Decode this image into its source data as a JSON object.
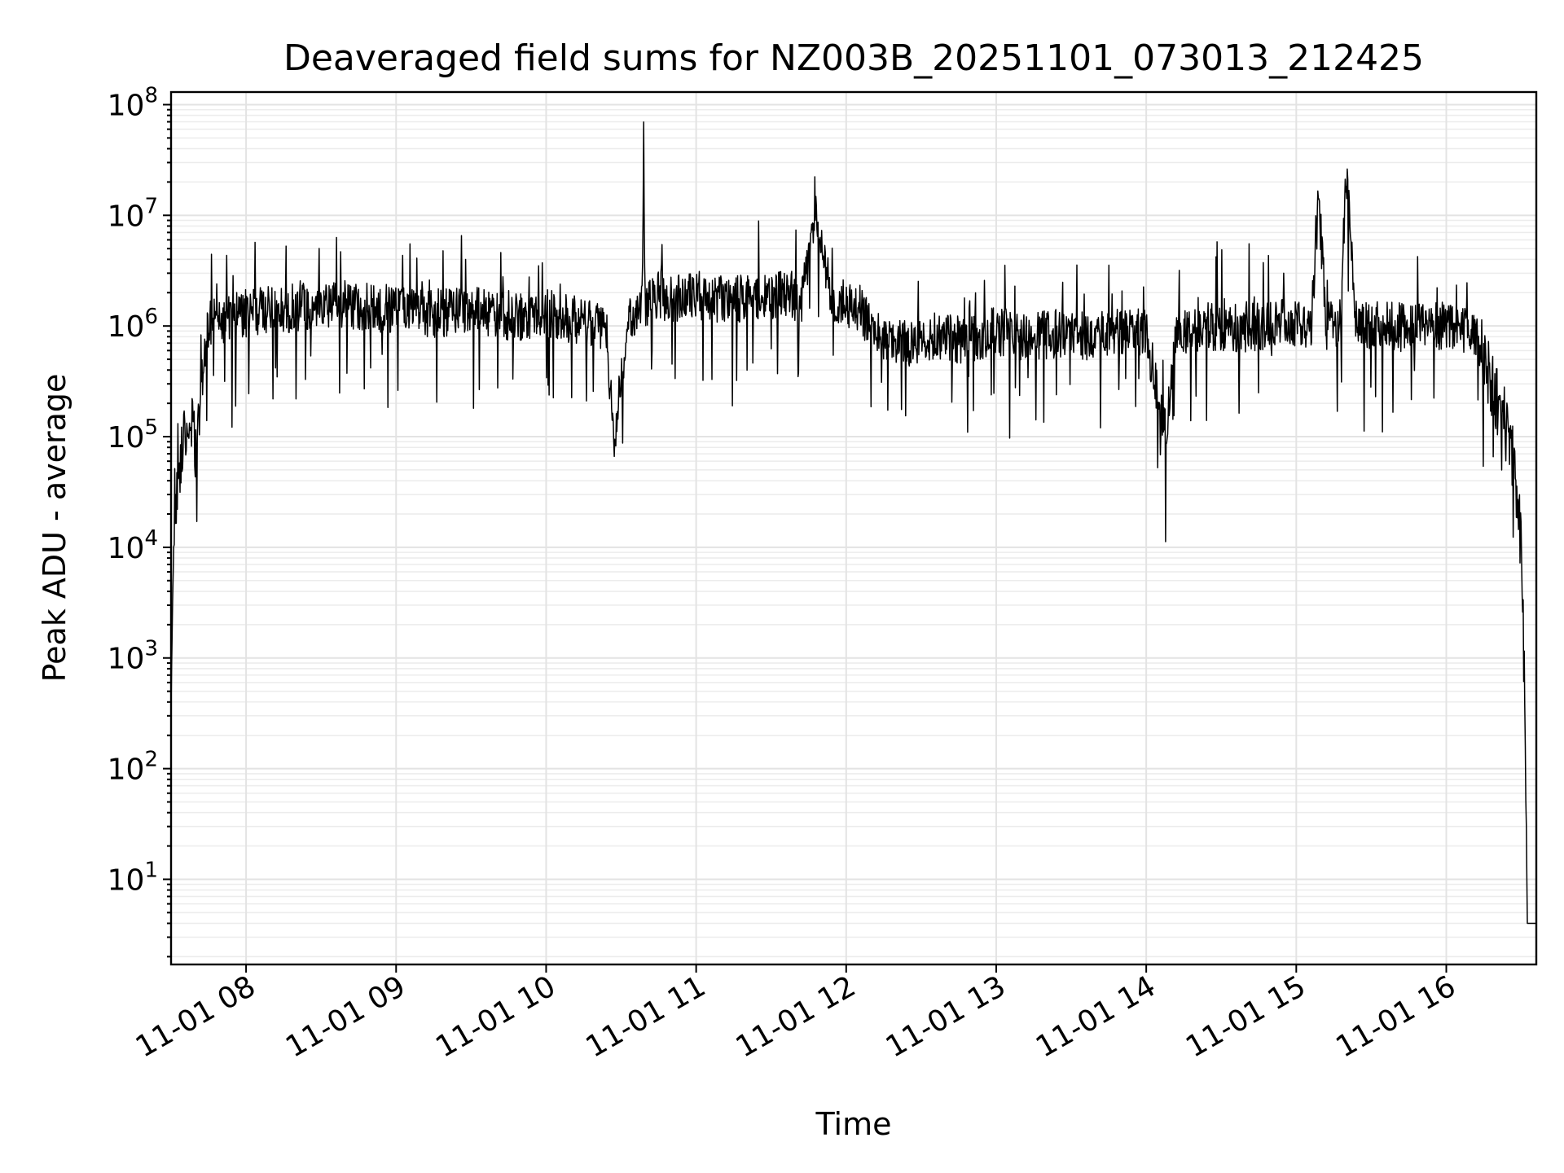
{
  "chart_data": {
    "type": "line",
    "title": "Deaveraged field sums for NZ003B_20251101_073013_212425",
    "xlabel": "Time",
    "ylabel": "Peak ADU - average",
    "yscale": "log",
    "ylim": [
      1.7,
      130000000
    ],
    "xlim_hours": [
      7.5,
      16.6
    ],
    "x_ticks": [
      {
        "label": "11-01 08",
        "hour": 8
      },
      {
        "label": "11-01 09",
        "hour": 9
      },
      {
        "label": "11-01 10",
        "hour": 10
      },
      {
        "label": "11-01 11",
        "hour": 11
      },
      {
        "label": "11-01 12",
        "hour": 12
      },
      {
        "label": "11-01 13",
        "hour": 13
      },
      {
        "label": "11-01 14",
        "hour": 14
      },
      {
        "label": "11-01 15",
        "hour": 15
      },
      {
        "label": "11-01 16",
        "hour": 16
      }
    ],
    "y_ticks": [
      {
        "base": "10",
        "exp": "1",
        "value": 10
      },
      {
        "base": "10",
        "exp": "2",
        "value": 100
      },
      {
        "base": "10",
        "exp": "3",
        "value": 1000
      },
      {
        "base": "10",
        "exp": "4",
        "value": 10000
      },
      {
        "base": "10",
        "exp": "5",
        "value": 100000
      },
      {
        "base": "10",
        "exp": "6",
        "value": 1000000
      },
      {
        "base": "10",
        "exp": "7",
        "value": 10000000
      },
      {
        "base": "10",
        "exp": "8",
        "value": 100000000
      }
    ],
    "grid": true,
    "line_color": "#000000",
    "series": [
      {
        "name": "deaveraged field sum",
        "x_hours": [
          7.5,
          7.51,
          7.52,
          7.54,
          7.56,
          7.58,
          7.6,
          7.63,
          7.66,
          7.7,
          7.73,
          7.75,
          7.78,
          7.8,
          7.85,
          7.9,
          8.0,
          8.2,
          8.4,
          8.6,
          8.8,
          9.0,
          9.25,
          9.5,
          9.75,
          10.0,
          10.25,
          10.4,
          10.45,
          10.55,
          10.6,
          10.64,
          10.65,
          10.66,
          10.7,
          10.8,
          11.0,
          11.2,
          11.4,
          11.6,
          11.7,
          11.8,
          11.9,
          12.0,
          12.1,
          12.2,
          12.4,
          12.6,
          12.8,
          13.0,
          13.2,
          13.4,
          13.6,
          13.8,
          14.0,
          14.13,
          14.2,
          14.4,
          14.6,
          14.8,
          15.0,
          15.1,
          15.15,
          15.2,
          15.3,
          15.33,
          15.4,
          15.6,
          15.8,
          16.0,
          16.2,
          16.25,
          16.3,
          16.35,
          16.4,
          16.45,
          16.48,
          16.5,
          16.52,
          16.54,
          16.55,
          16.56,
          16.57,
          16.6
        ],
        "y": [
          350,
          3000,
          15000,
          30000,
          60000,
          100000,
          80000,
          150000,
          80000,
          200000,
          700000,
          900000,
          1200000,
          1500000,
          1100000,
          1200000,
          1300000,
          1400000,
          1500000,
          1600000,
          1500000,
          1400000,
          1300000,
          1400000,
          1200000,
          1300000,
          1100000,
          1000000,
          90000,
          1200000,
          1400000,
          1600000,
          57000000,
          1400000,
          2000000,
          1800000,
          1900000,
          1700000,
          1800000,
          2000000,
          1700000,
          10000000,
          1900000,
          1600000,
          1400000,
          800000,
          700000,
          800000,
          750000,
          900000,
          800000,
          850000,
          800000,
          900000,
          850000,
          100000,
          900000,
          1000000,
          950000,
          1000000,
          1100000,
          1000000,
          14000000,
          1000000,
          1100000,
          28000000,
          1000000,
          1000000,
          950000,
          1000000,
          900000,
          600000,
          300000,
          200000,
          120000,
          60000,
          20000,
          9000,
          2000,
          4,
          4,
          4,
          4,
          4
        ]
      }
    ]
  }
}
